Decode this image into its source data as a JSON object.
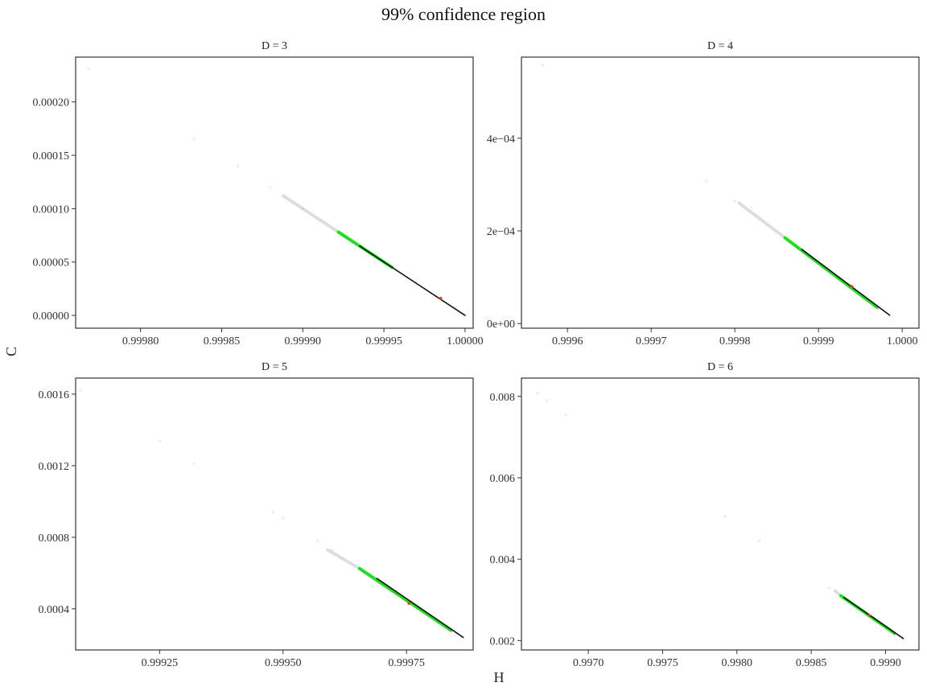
{
  "figure": {
    "title": "99% confidence region",
    "xlabel": "H",
    "ylabel": "C"
  },
  "colors": {
    "panel_border": "#333333",
    "cloud": "#9e9e9e",
    "core": "#111111",
    "highlight": "#22dd22",
    "point": "#e0401a"
  },
  "chart_data": [
    {
      "type": "scatter",
      "title": "D = 3",
      "xlim": [
        0.99976,
        1.000005
      ],
      "ylim": [
        -1.2e-05,
        0.000242
      ],
      "xticks": [
        0.9998,
        0.99985,
        0.9999,
        0.99995,
        1.0
      ],
      "xtick_labels": [
        "0.99980",
        "0.99985",
        "0.99990",
        "0.99995",
        "1.00000"
      ],
      "yticks": [
        0.0,
        5e-05,
        0.0001,
        0.00015,
        0.0002
      ],
      "ytick_labels": [
        "0.00000",
        "0.00005",
        "0.00010",
        "0.00015",
        "0.00020"
      ],
      "cloud_points": [
        [
          0.999768,
          0.000231
        ],
        [
          0.999833,
          0.000165
        ],
        [
          0.99986,
          0.00014
        ],
        [
          0.99988,
          0.00012
        ],
        [
          0.9999,
          0.0001
        ]
      ],
      "cloud_band": [
        [
          0.999888,
          0.000112
        ],
        [
          0.999925,
          7.5e-05
        ]
      ],
      "green_band": [
        [
          0.999922,
          7.8e-05
        ],
        [
          0.999955,
          4.5e-05
        ]
      ],
      "black_band": [
        [
          0.999935,
          6.5e-05
        ],
        [
          1.0,
          0.0
        ]
      ],
      "estimate": [
        0.999985,
        1.6e-05
      ]
    },
    {
      "type": "scatter",
      "title": "D = 4",
      "xlim": [
        0.999545,
        1.00002
      ],
      "ylim": [
        -1e-05,
        0.000575
      ],
      "xticks": [
        0.9996,
        0.9997,
        0.9998,
        0.9999,
        1.0
      ],
      "xtick_labels": [
        "0.9996",
        "0.9997",
        "0.9998",
        "0.9999",
        "1.0000"
      ],
      "yticks": [
        0.0,
        0.0002,
        0.0004
      ],
      "ytick_labels": [
        "0e+00",
        "2e−04",
        "4e−04"
      ],
      "cloud_points": [
        [
          0.99957,
          0.000558
        ],
        [
          0.999766,
          0.000308
        ],
        [
          0.9998,
          0.000265
        ],
        [
          0.99982,
          0.00025
        ]
      ],
      "cloud_band": [
        [
          0.999805,
          0.00026
        ],
        [
          0.99986,
          0.000185
        ]
      ],
      "green_band": [
        [
          0.99986,
          0.000185
        ],
        [
          0.99997,
          3.5e-05
        ]
      ],
      "black_band": [
        [
          0.99988,
          0.00016
        ],
        [
          0.999985,
          1.8e-05
        ]
      ],
      "estimate": [
        0.99994,
        8e-05
      ]
    },
    {
      "type": "scatter",
      "title": "D = 5",
      "xlim": [
        0.99908,
        0.999885
      ],
      "ylim": [
        0.00017,
        0.00169
      ],
      "xticks": [
        0.99925,
        0.9995,
        0.99975
      ],
      "xtick_labels": [
        "0.99925",
        "0.99950",
        "0.99975"
      ],
      "yticks": [
        0.0004,
        0.0008,
        0.0012,
        0.0016
      ],
      "ytick_labels": [
        "0.0004",
        "0.0008",
        "0.0012",
        "0.0016"
      ],
      "cloud_points": [
        [
          0.99909,
          0.00162
        ],
        [
          0.99925,
          0.00134
        ],
        [
          0.99932,
          0.00121
        ],
        [
          0.99948,
          0.00094
        ],
        [
          0.9995,
          0.00091
        ],
        [
          0.99957,
          0.00078
        ],
        [
          0.9996,
          0.00073
        ]
      ],
      "cloud_band": [
        [
          0.99959,
          0.00073
        ],
        [
          0.999655,
          0.000625
        ]
      ],
      "green_band": [
        [
          0.999655,
          0.000625
        ],
        [
          0.99984,
          0.00028
        ]
      ],
      "black_band": [
        [
          0.99969,
          0.00057
        ],
        [
          0.999865,
          0.00024
        ]
      ],
      "estimate": [
        0.999755,
        0.00043
      ]
    },
    {
      "type": "scatter",
      "title": "D = 6",
      "xlim": [
        0.99655,
        0.999225
      ],
      "ylim": [
        0.00177,
        0.00845
      ],
      "xticks": [
        0.997,
        0.9975,
        0.998,
        0.9985,
        0.999
      ],
      "xtick_labels": [
        "0.9970",
        "0.9975",
        "0.9980",
        "0.9985",
        "0.9990"
      ],
      "yticks": [
        0.002,
        0.004,
        0.006,
        0.008
      ],
      "ytick_labels": [
        "0.002",
        "0.004",
        "0.006",
        "0.008"
      ],
      "cloud_points": [
        [
          0.99666,
          0.00808
        ],
        [
          0.99672,
          0.0079
        ],
        [
          0.99685,
          0.00755
        ],
        [
          0.99792,
          0.00505
        ],
        [
          0.99815,
          0.00445
        ],
        [
          0.99862,
          0.0033
        ]
      ],
      "cloud_band": [
        [
          0.99866,
          0.00322
        ],
        [
          0.9987,
          0.0031
        ]
      ],
      "green_band": [
        [
          0.9987,
          0.0031
        ],
        [
          0.99906,
          0.00218
        ]
      ],
      "black_band": [
        [
          0.99872,
          0.00306
        ],
        [
          0.99912,
          0.00205
        ]
      ],
      "estimate": [
        0.99889,
        0.00262
      ]
    }
  ]
}
